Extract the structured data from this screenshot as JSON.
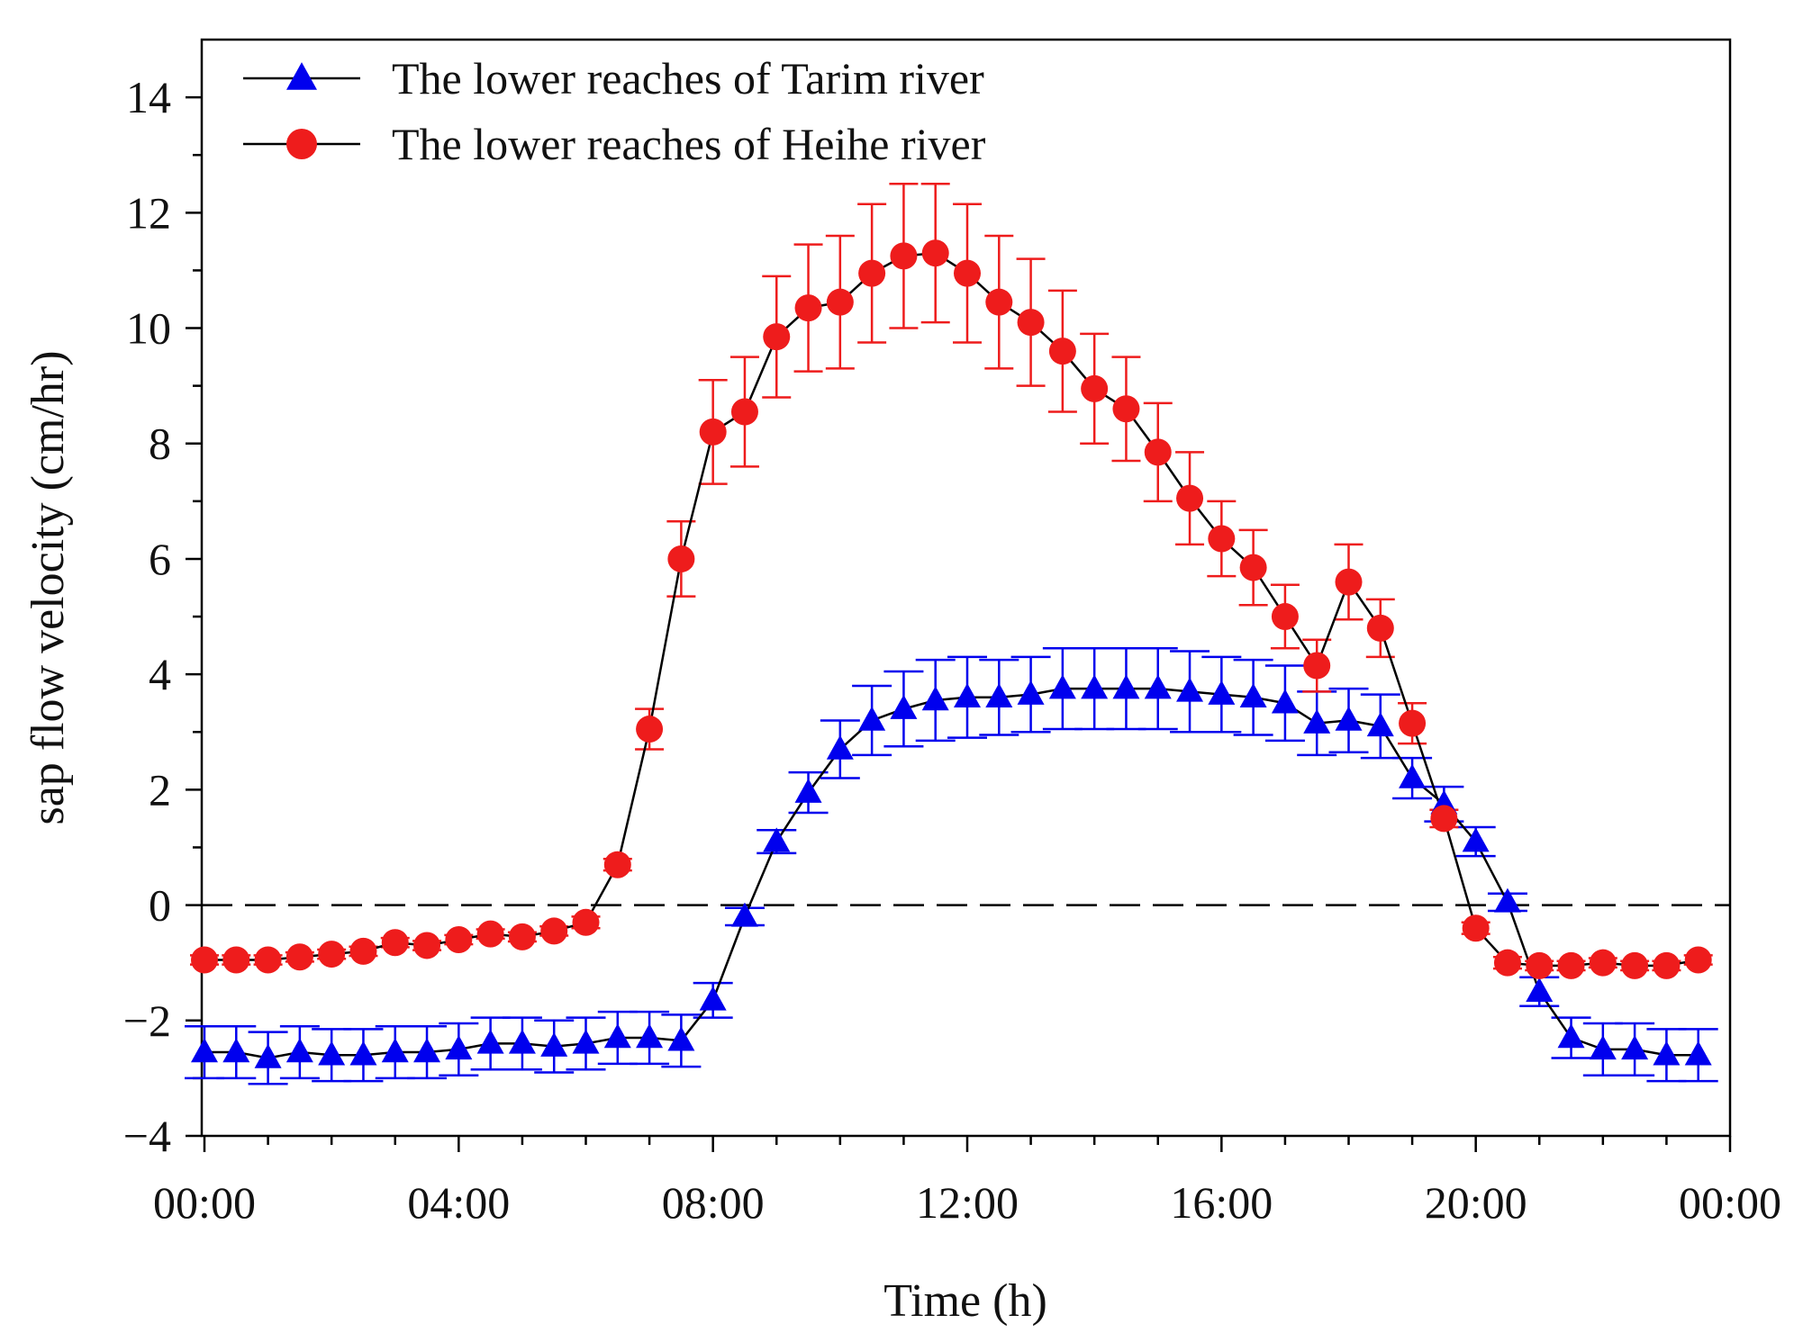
{
  "chart_data": {
    "type": "line",
    "xlabel": "Time (h)",
    "ylabel": "sap flow velocity (cm/hr)",
    "xlim": [
      0,
      24
    ],
    "ylim": [
      -4,
      15
    ],
    "x_ticks": [
      0,
      4,
      8,
      12,
      16,
      20,
      24
    ],
    "x_tick_labels": [
      "00:00",
      "04:00",
      "08:00",
      "12:00",
      "16:00",
      "20:00",
      "00:00"
    ],
    "y_ticks": [
      -4,
      -2,
      0,
      2,
      4,
      6,
      8,
      10,
      12,
      14
    ],
    "y_tick_labels": [
      "−4",
      "−2",
      "0",
      "2",
      "4",
      "6",
      "8",
      "10",
      "12",
      "14"
    ],
    "reference_line": {
      "y": 0,
      "style": "dashed"
    },
    "grid": false,
    "legend_position": "top-left",
    "x": [
      0,
      0.5,
      1,
      1.5,
      2,
      2.5,
      3,
      3.5,
      4,
      4.5,
      5,
      5.5,
      6,
      6.5,
      7,
      7.5,
      8,
      8.5,
      9,
      9.5,
      10,
      10.5,
      11,
      11.5,
      12,
      12.5,
      13,
      13.5,
      14,
      14.5,
      15,
      15.5,
      16,
      16.5,
      17,
      17.5,
      18,
      18.5,
      19,
      19.5,
      20,
      20.5,
      21,
      21.5,
      22,
      22.5,
      23,
      23.5
    ],
    "series": [
      {
        "name": "The lower reaches of Tarim river",
        "color": "#0000ee",
        "marker": "triangle",
        "values": [
          -2.55,
          -2.55,
          -2.65,
          -2.55,
          -2.6,
          -2.6,
          -2.55,
          -2.55,
          -2.5,
          -2.4,
          -2.4,
          -2.45,
          -2.4,
          -2.3,
          -2.3,
          -2.35,
          -1.65,
          -0.2,
          1.1,
          1.95,
          2.7,
          3.2,
          3.4,
          3.55,
          3.6,
          3.6,
          3.65,
          3.75,
          3.75,
          3.75,
          3.75,
          3.7,
          3.65,
          3.6,
          3.5,
          3.15,
          3.2,
          3.1,
          2.2,
          1.75,
          1.1,
          0.05,
          -1.5,
          -2.3,
          -2.5,
          -2.5,
          -2.6,
          -2.6
        ],
        "errors": [
          0.45,
          0.45,
          0.45,
          0.45,
          0.45,
          0.45,
          0.45,
          0.45,
          0.45,
          0.45,
          0.45,
          0.45,
          0.45,
          0.45,
          0.45,
          0.45,
          0.3,
          0.15,
          0.2,
          0.35,
          0.5,
          0.6,
          0.65,
          0.7,
          0.7,
          0.65,
          0.65,
          0.7,
          0.7,
          0.7,
          0.7,
          0.7,
          0.65,
          0.65,
          0.65,
          0.55,
          0.55,
          0.55,
          0.35,
          0.3,
          0.25,
          0.15,
          0.25,
          0.35,
          0.45,
          0.45,
          0.45,
          0.45
        ]
      },
      {
        "name": "The lower reaches of  Heihe river",
        "color": "#ee1c1c",
        "marker": "circle",
        "values": [
          -0.95,
          -0.95,
          -0.95,
          -0.9,
          -0.85,
          -0.8,
          -0.65,
          -0.7,
          -0.6,
          -0.5,
          -0.55,
          -0.45,
          -0.3,
          0.7,
          3.05,
          6.0,
          8.2,
          8.55,
          9.85,
          10.35,
          10.45,
          10.95,
          11.25,
          11.3,
          10.95,
          10.45,
          10.1,
          9.6,
          8.95,
          8.6,
          7.85,
          7.05,
          6.35,
          5.85,
          5.0,
          4.15,
          5.6,
          4.8,
          3.15,
          1.5,
          -0.4,
          -1.0,
          -1.05,
          -1.05,
          -1.0,
          -1.05,
          -1.05,
          -0.95
        ]
      }
    ],
    "heihe_errors": [
      0.08,
      0.08,
      0.08,
      0.08,
      0.08,
      0.08,
      0.08,
      0.08,
      0.08,
      0.08,
      0.08,
      0.08,
      0.1,
      0.1,
      0.35,
      0.65,
      0.9,
      0.95,
      1.05,
      1.1,
      1.15,
      1.2,
      1.25,
      1.2,
      1.2,
      1.15,
      1.1,
      1.05,
      0.95,
      0.9,
      0.85,
      0.8,
      0.65,
      0.65,
      0.55,
      0.45,
      0.65,
      0.5,
      0.35,
      0.15,
      0.1,
      0.1,
      0.08,
      0.08,
      0.08,
      0.08,
      0.08,
      0.08
    ]
  }
}
